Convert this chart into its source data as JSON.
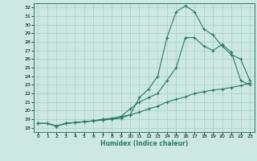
{
  "title": "",
  "xlabel": "Humidex (Indice chaleur)",
  "xlim": [
    -0.5,
    23.5
  ],
  "ylim": [
    17.5,
    32.5
  ],
  "xticks": [
    0,
    1,
    2,
    3,
    4,
    5,
    6,
    7,
    8,
    9,
    10,
    11,
    12,
    13,
    14,
    15,
    16,
    17,
    18,
    19,
    20,
    21,
    22,
    23
  ],
  "yticks": [
    18,
    19,
    20,
    21,
    22,
    23,
    24,
    25,
    26,
    27,
    28,
    29,
    30,
    31,
    32
  ],
  "line_color": "#2a7a6a",
  "bg_color": "#cce8e0",
  "grid_color": "#a8cfc5",
  "line1_x": [
    0,
    1,
    2,
    3,
    4,
    5,
    6,
    7,
    8,
    9,
    10,
    11,
    12,
    13,
    14,
    15,
    16,
    17,
    18,
    19,
    20,
    21,
    22,
    23
  ],
  "line1_y": [
    18.5,
    18.5,
    18.2,
    18.5,
    18.6,
    18.7,
    18.8,
    18.9,
    19.0,
    19.1,
    19.5,
    21.5,
    22.5,
    24.0,
    28.5,
    31.5,
    32.2,
    31.5,
    29.5,
    28.8,
    27.5,
    26.5,
    26.0,
    23.5
  ],
  "line2_x": [
    0,
    1,
    2,
    3,
    4,
    5,
    6,
    7,
    8,
    9,
    10,
    11,
    12,
    13,
    14,
    15,
    16,
    17,
    18,
    19,
    20,
    21,
    22,
    23
  ],
  "line2_y": [
    18.5,
    18.5,
    18.2,
    18.5,
    18.6,
    18.7,
    18.8,
    18.9,
    19.0,
    19.3,
    20.2,
    21.0,
    21.5,
    22.0,
    23.5,
    25.0,
    28.5,
    28.5,
    27.5,
    27.0,
    27.7,
    26.8,
    23.5,
    23.0
  ],
  "line3_x": [
    0,
    1,
    2,
    3,
    4,
    5,
    6,
    7,
    8,
    9,
    10,
    11,
    12,
    13,
    14,
    15,
    16,
    17,
    18,
    19,
    20,
    21,
    22,
    23
  ],
  "line3_y": [
    18.5,
    18.5,
    18.2,
    18.5,
    18.6,
    18.7,
    18.8,
    19.0,
    19.1,
    19.3,
    19.5,
    19.8,
    20.2,
    20.5,
    21.0,
    21.3,
    21.6,
    22.0,
    22.2,
    22.4,
    22.5,
    22.7,
    22.9,
    23.2
  ]
}
